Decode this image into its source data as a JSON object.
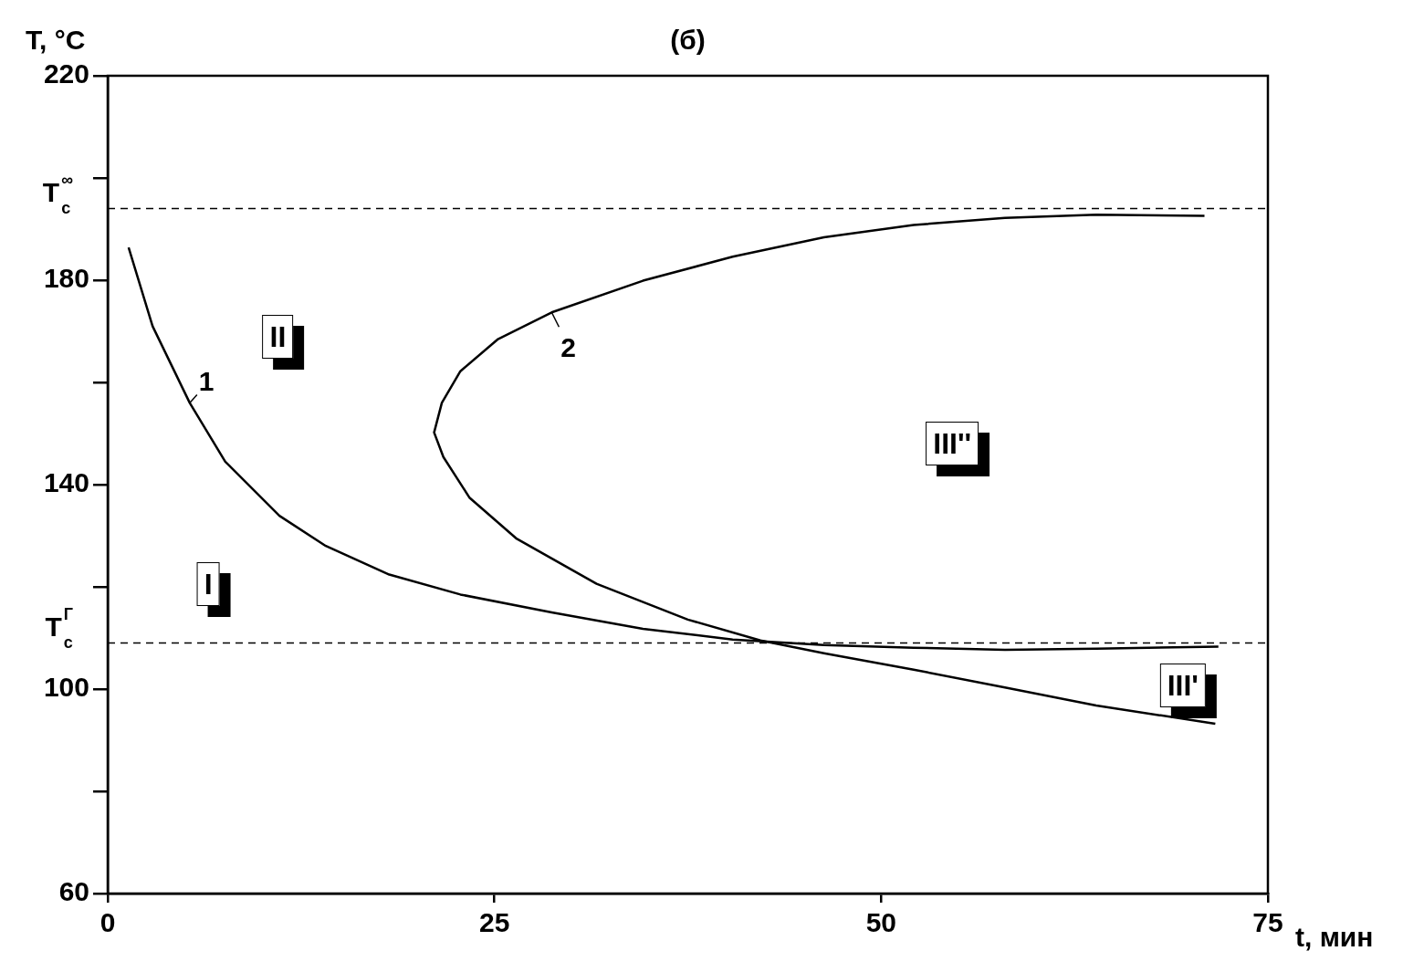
{
  "chart_data": {
    "type": "line",
    "title": "(б)",
    "xlabel": "t, мин",
    "ylabel": "T, °C",
    "xlim": [
      0,
      75
    ],
    "xticks": [
      0,
      25,
      50,
      75
    ],
    "ylim": [
      60,
      220
    ],
    "yticks": [
      60,
      {
        "value": 80,
        "label": null
      },
      100,
      {
        "value": 120,
        "label": null
      },
      140,
      {
        "value": 160,
        "label": null
      },
      180,
      {
        "value": 200,
        "label": null
      },
      220
    ],
    "grid": false,
    "legend": false,
    "marker": "none",
    "line_style": "solid",
    "series": [
      {
        "color": "#000000",
        "x": [
          1.35,
          2.9,
          5.3,
          7.6,
          11.1,
          14.1,
          18.2,
          22.8,
          28.7,
          34.6,
          40.4,
          46.3,
          52.1,
          58,
          63.9,
          71.8
        ],
        "values": [
          186.4,
          171,
          156,
          144.5,
          133.9,
          128,
          122.4,
          118.5,
          115,
          111.8,
          109.7,
          108.6,
          108.1,
          107.7,
          107.9,
          108.3
        ]
      },
      {
        "color": "#000000",
        "x": [
          71.6,
          63.9,
          58,
          52.1,
          46.3,
          42.2,
          37.5,
          31.6,
          26.4,
          23.4,
          21.7,
          21.1,
          21.6,
          22.8,
          25.2,
          28.7,
          34.6,
          40.4,
          46.3,
          52.1,
          58,
          63.9,
          70.9
        ],
        "values": [
          93.2,
          96.8,
          100.3,
          103.8,
          107,
          109.5,
          113.6,
          120.6,
          129.5,
          137.4,
          145.4,
          150.2,
          156,
          162.2,
          168.4,
          173.7,
          179.9,
          184.6,
          188.4,
          190.8,
          192.2,
          192.8,
          192.6
        ]
      }
    ],
    "ref_lines": [
      {
        "axis": "y",
        "value": 194,
        "label": "T$_{с}$$^{∞}$",
        "color": "#000000",
        "line_style": "dashed"
      },
      {
        "axis": "y",
        "value": 109,
        "label": "T$_{с}$$^{Г}$",
        "color": "#000000",
        "line_style": "dashed"
      }
    ],
    "annotations": [
      "II",
      "I",
      "III''",
      "III'",
      {
        "text": "1",
        "x": 5.3,
        "y": 156
      },
      {
        "text": "2",
        "x": 28.7,
        "y": 173.7
      }
    ]
  }
}
